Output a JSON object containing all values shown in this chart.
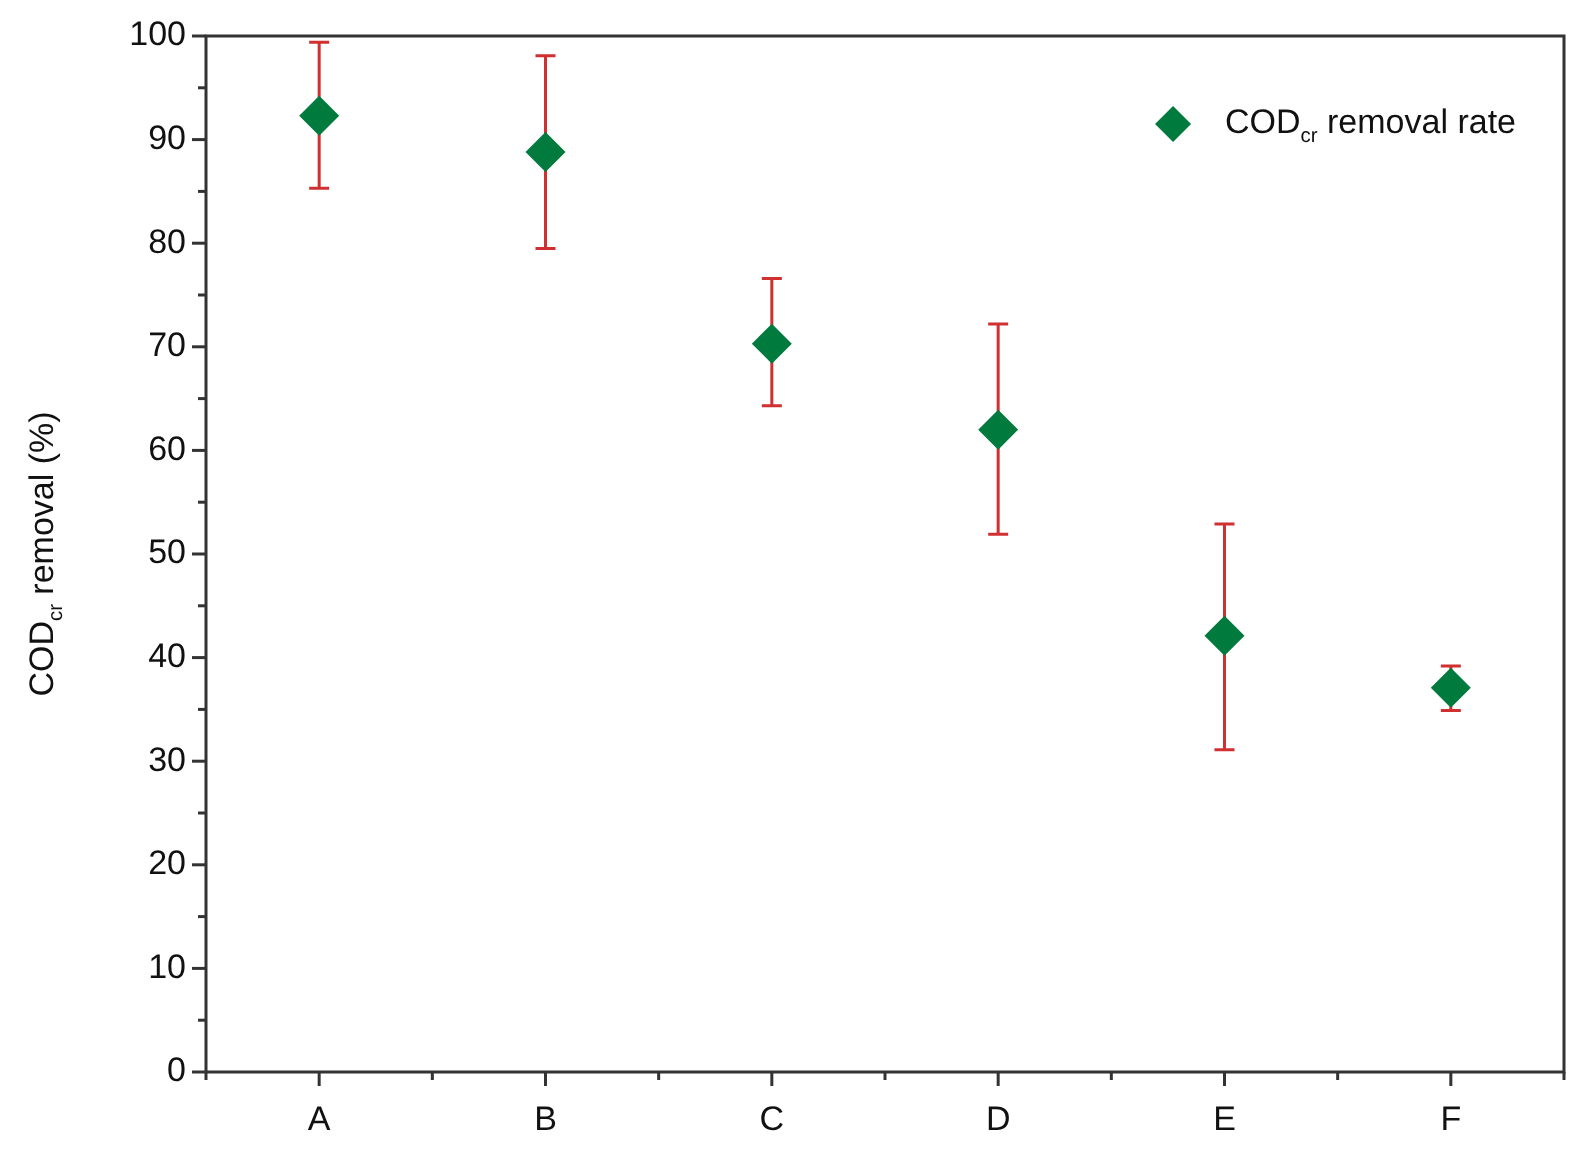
{
  "chart_data": {
    "type": "scatter",
    "ylabel": "COD$_{cr}$ removal (%)",
    "categories": [
      "A",
      "B",
      "C",
      "D",
      "E",
      "F"
    ],
    "series": [
      {
        "name": "COD$_{cr}$ removal rate",
        "color": "#007a3d",
        "values": [
          92.3,
          88.8,
          70.3,
          62.0,
          42.1,
          37.1
        ],
        "errors": [
          [
            85.3,
            99.4
          ],
          [
            79.5,
            98.1
          ],
          [
            64.3,
            76.6
          ],
          [
            51.9,
            72.2
          ],
          [
            31.1,
            52.9
          ],
          [
            34.9,
            39.2
          ]
        ]
      }
    ],
    "ylim": [
      0,
      100
    ],
    "yticks": [
      0,
      {
        "value": 5,
        "label": null
      },
      10,
      {
        "value": 15,
        "label": null
      },
      20,
      {
        "value": 25,
        "label": null
      },
      30,
      {
        "value": 35,
        "label": null
      },
      40,
      {
        "value": 45,
        "label": null
      },
      50,
      {
        "value": 55,
        "label": null
      },
      60,
      {
        "value": 65,
        "label": null
      },
      70,
      {
        "value": 75,
        "label": null
      },
      80,
      {
        "value": 85,
        "label": null
      },
      90,
      {
        "value": 95,
        "label": null
      },
      100
    ],
    "legend": "top right",
    "marker": "diamond"
  }
}
